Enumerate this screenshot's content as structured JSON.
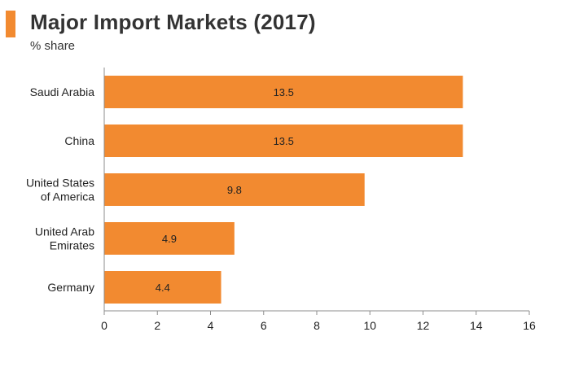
{
  "title": "Major Import Markets (2017)",
  "subtitle": "% share",
  "colors": {
    "accent": "#f28a30",
    "bar": "#f28a30",
    "axis": "#8c8c8c"
  },
  "chart_data": {
    "type": "bar",
    "orientation": "horizontal",
    "title": "Major Import Markets (2017)",
    "subtitle": "% share",
    "categories": [
      "Saudi Arabia",
      "China",
      "United States of America",
      "United Arab Emirates",
      "Germany"
    ],
    "category_label_lines": [
      [
        "Saudi Arabia"
      ],
      [
        "China"
      ],
      [
        "United States",
        "of America"
      ],
      [
        "United Arab",
        "Emirates"
      ],
      [
        "Germany"
      ]
    ],
    "values": [
      13.5,
      13.5,
      9.8,
      4.9,
      4.4
    ],
    "value_labels": [
      "13.5",
      "13.5",
      "9.8",
      "4.9",
      "4.4"
    ],
    "xlim": [
      0,
      16
    ],
    "xticks": [
      0,
      2,
      4,
      6,
      8,
      10,
      12,
      14,
      16
    ],
    "xlabel": "",
    "ylabel": "",
    "grid": false,
    "legend": "none",
    "data_labels": "inside-center"
  }
}
